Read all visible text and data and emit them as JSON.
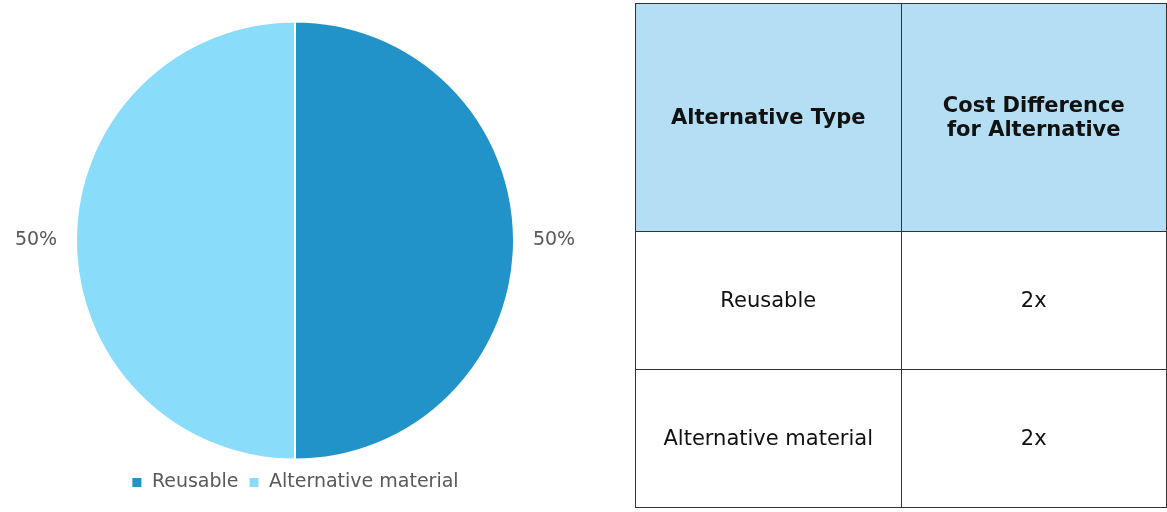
{
  "chart_data": [
    {
      "type": "pie",
      "categories": [
        "Reusable",
        "Alternative material"
      ],
      "values": [
        50,
        50
      ],
      "colors": [
        "#2193c9",
        "#8adcfb"
      ],
      "value_labels": [
        "50%",
        "50%"
      ],
      "legend": "bottom"
    },
    {
      "type": "other",
      "categories": [
        "Alternative Type",
        "Cost Difference for Alternative"
      ],
      "y_categories": [
        "Reusable",
        "Alternative material"
      ],
      "cell_labels": [
        [
          "2x"
        ],
        [
          "2x"
        ]
      ]
    }
  ]
}
